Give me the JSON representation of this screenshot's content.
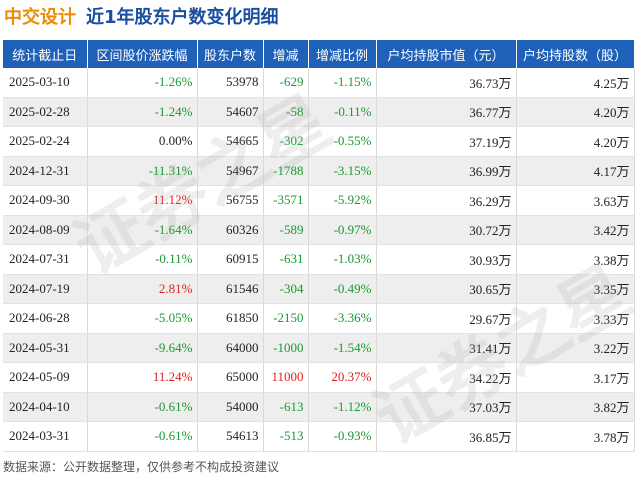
{
  "header": {
    "company": "中交设计",
    "title": "近1年股东户数变化明细"
  },
  "table": {
    "columns": [
      "统计截止日",
      "区间股价涨跌幅",
      "股东户数",
      "增减",
      "增减比例",
      "户均持股市值（元）",
      "户均持股数（股）"
    ],
    "rows": [
      {
        "date": "2025-03-10",
        "change": "-1.26%",
        "holders": "53978",
        "delta": "-629",
        "ratio": "-1.15%",
        "value": "36.73万",
        "shares": "4.25万"
      },
      {
        "date": "2025-02-28",
        "change": "-1.24%",
        "holders": "54607",
        "delta": "-58",
        "ratio": "-0.11%",
        "value": "36.77万",
        "shares": "4.20万"
      },
      {
        "date": "2025-02-24",
        "change": "0.00%",
        "holders": "54665",
        "delta": "-302",
        "ratio": "-0.55%",
        "value": "37.19万",
        "shares": "4.20万"
      },
      {
        "date": "2024-12-31",
        "change": "-11.31%",
        "holders": "54967",
        "delta": "-1788",
        "ratio": "-3.15%",
        "value": "36.99万",
        "shares": "4.17万"
      },
      {
        "date": "2024-09-30",
        "change": "11.12%",
        "holders": "56755",
        "delta": "-3571",
        "ratio": "-5.92%",
        "value": "36.29万",
        "shares": "3.63万"
      },
      {
        "date": "2024-08-09",
        "change": "-1.64%",
        "holders": "60326",
        "delta": "-589",
        "ratio": "-0.97%",
        "value": "30.72万",
        "shares": "3.42万"
      },
      {
        "date": "2024-07-31",
        "change": "-0.11%",
        "holders": "60915",
        "delta": "-631",
        "ratio": "-1.03%",
        "value": "30.93万",
        "shares": "3.38万"
      },
      {
        "date": "2024-07-19",
        "change": "2.81%",
        "holders": "61546",
        "delta": "-304",
        "ratio": "-0.49%",
        "value": "30.65万",
        "shares": "3.35万"
      },
      {
        "date": "2024-06-28",
        "change": "-5.05%",
        "holders": "61850",
        "delta": "-2150",
        "ratio": "-3.36%",
        "value": "29.67万",
        "shares": "3.33万"
      },
      {
        "date": "2024-05-31",
        "change": "-9.64%",
        "holders": "64000",
        "delta": "-1000",
        "ratio": "-1.54%",
        "value": "31.41万",
        "shares": "3.22万"
      },
      {
        "date": "2024-05-09",
        "change": "11.24%",
        "holders": "65000",
        "delta": "11000",
        "ratio": "20.37%",
        "value": "34.22万",
        "shares": "3.17万"
      },
      {
        "date": "2024-04-10",
        "change": "-0.61%",
        "holders": "54000",
        "delta": "-613",
        "ratio": "-1.12%",
        "value": "37.03万",
        "shares": "3.82万"
      },
      {
        "date": "2024-03-31",
        "change": "-0.61%",
        "holders": "54613",
        "delta": "-513",
        "ratio": "-0.93%",
        "value": "36.85万",
        "shares": "3.78万"
      }
    ]
  },
  "footer": {
    "note": "数据来源：公开数据整理，仅供参考不构成投资建议"
  },
  "colors": {
    "header_bg": "#1f61b8",
    "company": "#f08a00",
    "title": "#1a4fa0",
    "positive": "#e02020",
    "negative": "#1a9a30"
  }
}
